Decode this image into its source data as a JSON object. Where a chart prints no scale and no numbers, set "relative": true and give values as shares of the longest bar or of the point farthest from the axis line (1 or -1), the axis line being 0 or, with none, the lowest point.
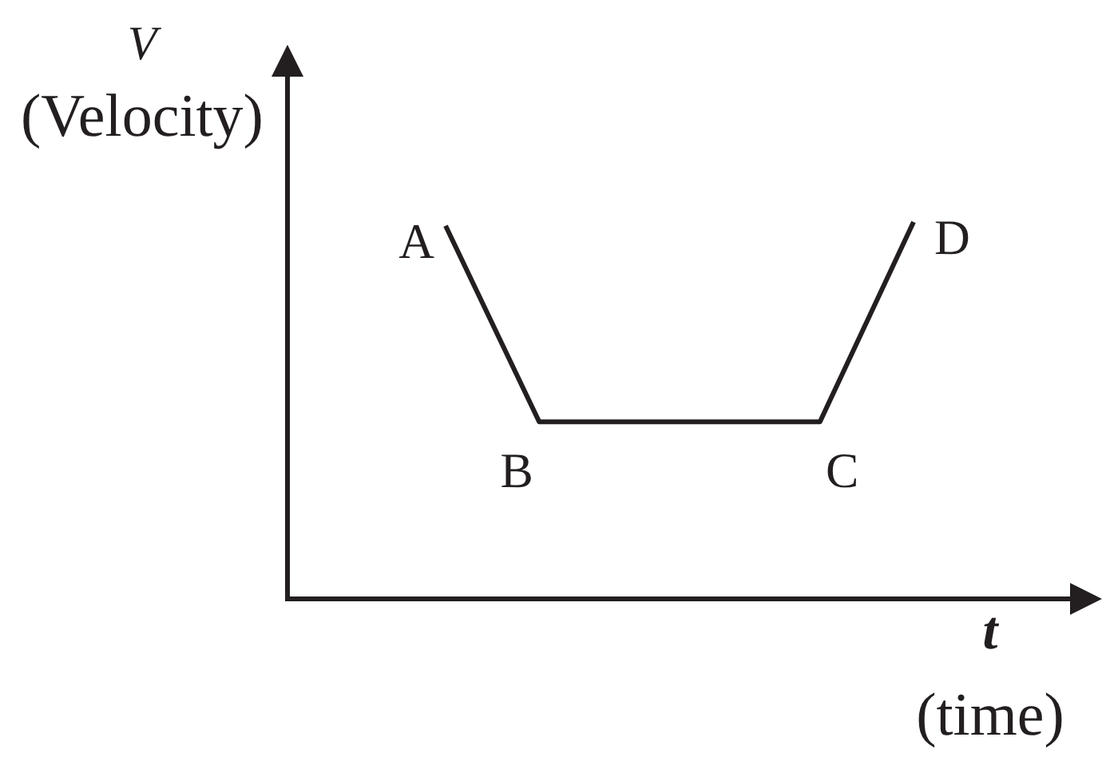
{
  "chart_data": {
    "type": "line",
    "relative": true,
    "xlabel": "t\n(time)",
    "ylabel": "V\n(Velocity)",
    "categories": [
      null,
      null,
      null,
      null,
      null,
      null
    ],
    "values": [
      0.99,
      0.47,
      0.47,
      0.47,
      0.47,
      1
    ],
    "color": "#231f20",
    "annotations": [
      "A",
      "B",
      "C",
      "D"
    ]
  }
}
